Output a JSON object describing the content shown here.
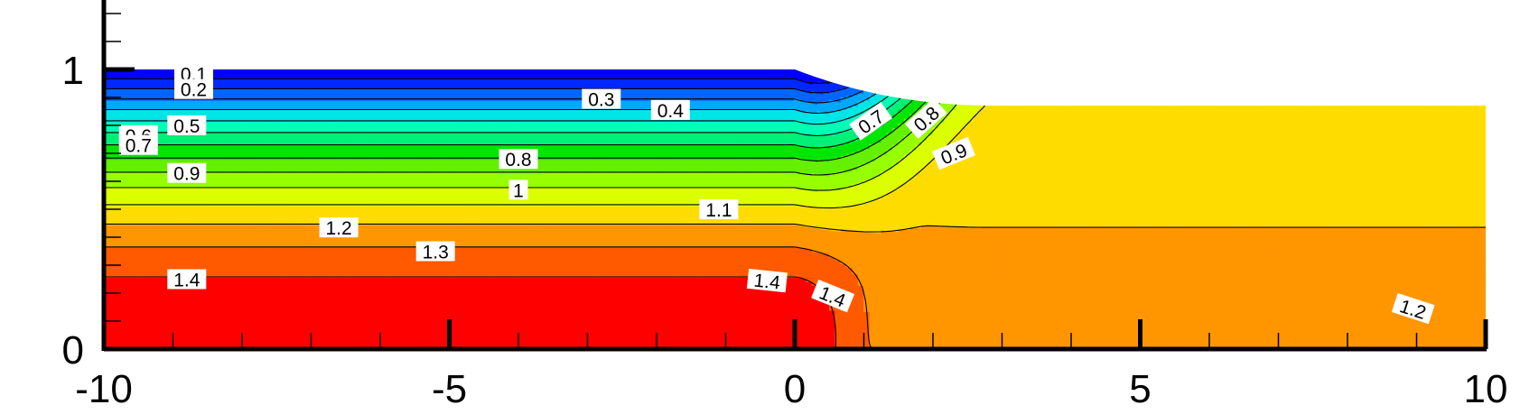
{
  "chart_data": {
    "type": "contour",
    "title": "",
    "xlabel": "",
    "ylabel": "",
    "xlim": [
      -10,
      10
    ],
    "ylim": [
      0,
      1.2
    ],
    "grid": false,
    "legend": "none",
    "x_ticks": [
      "-10",
      "-5",
      "0",
      "5",
      "10"
    ],
    "y_ticks": [
      "0",
      "1"
    ],
    "contour_levels": [
      0.1,
      0.2,
      0.3,
      0.4,
      0.5,
      0.6,
      0.7,
      0.8,
      0.9,
      1.0,
      1.1,
      1.2,
      1.3,
      1.4
    ],
    "band_colors": [
      "#0000ff",
      "#0028ff",
      "#0066ff",
      "#00a8ff",
      "#00e6e6",
      "#00ffb4",
      "#00f078",
      "#00e600",
      "#64f000",
      "#96ff00",
      "#dcff00",
      "#ffdc00",
      "#ff9600",
      "#ff5a00",
      "#ff0000"
    ],
    "surface": {
      "inlet_height": 1.0,
      "outlet_height": 0.87,
      "transition_x": [
        0,
        3
      ]
    },
    "contour_labels": [
      {
        "text": "0.1",
        "x": -8.7,
        "y": 0.985,
        "angle": 0
      },
      {
        "text": "0.2",
        "x": -8.7,
        "y": 0.93,
        "angle": 0
      },
      {
        "text": "0.3",
        "x": -2.8,
        "y": 0.895,
        "angle": 0
      },
      {
        "text": "0.4",
        "x": -1.8,
        "y": 0.855,
        "angle": 0
      },
      {
        "text": "0.5",
        "x": -8.8,
        "y": 0.8,
        "angle": 0
      },
      {
        "text": "0.6",
        "x": -9.5,
        "y": 0.765,
        "angle": 0
      },
      {
        "text": "0.7",
        "x": -9.5,
        "y": 0.73,
        "angle": 0
      },
      {
        "text": "0.7",
        "x": 1.1,
        "y": 0.815,
        "angle": -35
      },
      {
        "text": "0.8",
        "x": -4.0,
        "y": 0.68,
        "angle": 0
      },
      {
        "text": "0.8",
        "x": 1.9,
        "y": 0.825,
        "angle": -42
      },
      {
        "text": "0.9",
        "x": -8.8,
        "y": 0.63,
        "angle": 0
      },
      {
        "text": "0.9",
        "x": 2.3,
        "y": 0.7,
        "angle": -22
      },
      {
        "text": "1",
        "x": -4.0,
        "y": 0.57,
        "angle": 0
      },
      {
        "text": "1.1",
        "x": -1.1,
        "y": 0.5,
        "angle": 0
      },
      {
        "text": "1.2",
        "x": -6.6,
        "y": 0.435,
        "angle": 0
      },
      {
        "text": "1.2",
        "x": 8.95,
        "y": 0.145,
        "angle": 18
      },
      {
        "text": "1.3",
        "x": -5.2,
        "y": 0.35,
        "angle": 0
      },
      {
        "text": "1.4",
        "x": -8.8,
        "y": 0.25,
        "angle": 0
      },
      {
        "text": "1.4",
        "x": -0.4,
        "y": 0.245,
        "angle": 6
      },
      {
        "text": "1.4",
        "x": 0.55,
        "y": 0.19,
        "angle": 22
      }
    ]
  }
}
